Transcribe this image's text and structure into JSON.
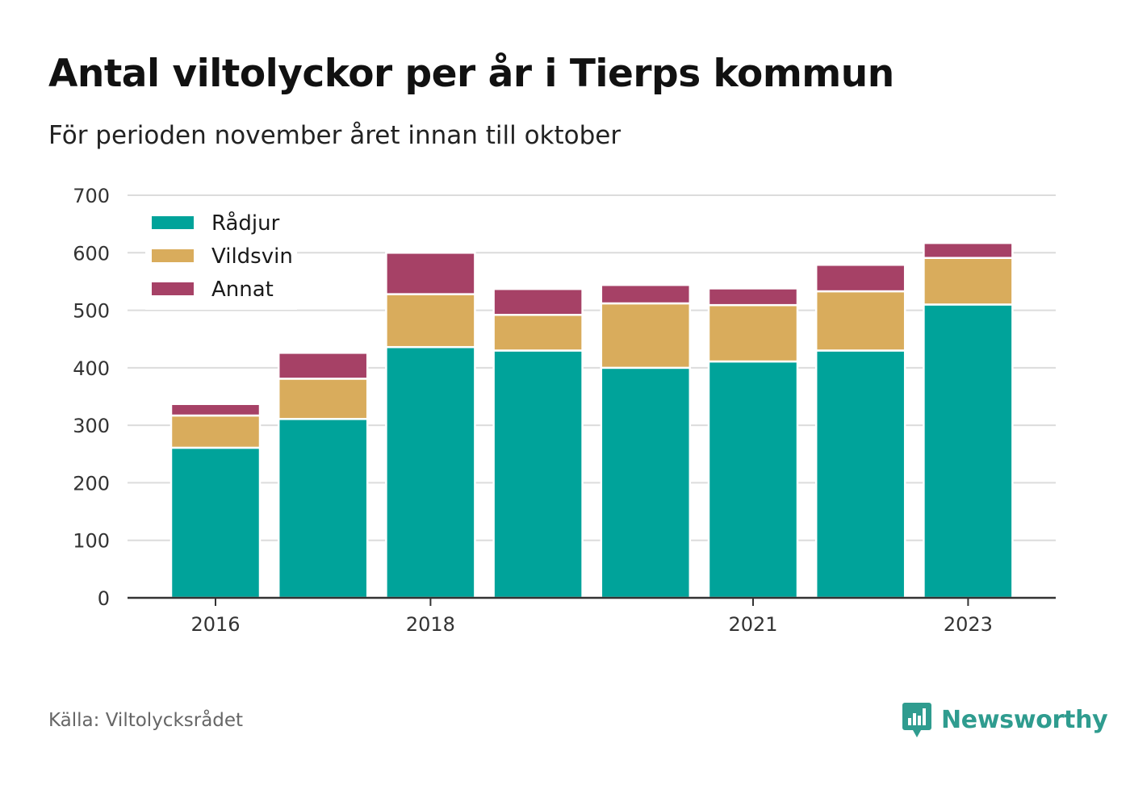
{
  "header": {
    "title": "Antal viltolyckor per år i Tierps kommun",
    "subtitle": "För perioden november året innan till oktober"
  },
  "footer": {
    "source": "Källa: Viltolycksrådet",
    "brand": "Newsworthy",
    "brand_icon": "bar-chart-speech-bubble-icon",
    "brand_color": "#2f9c8f"
  },
  "chart_data": {
    "type": "bar",
    "stacked": true,
    "categories": [
      "2016",
      "2017",
      "2018",
      "2019",
      "2020",
      "2021",
      "2022",
      "2023"
    ],
    "x_tick_labels": [
      "2016",
      "",
      "2018",
      "",
      "",
      "2021",
      "",
      "2023"
    ],
    "series": [
      {
        "name": "Rådjur",
        "color": "#00a39a",
        "values": [
          261,
          311,
          436,
          430,
          400,
          411,
          430,
          510
        ]
      },
      {
        "name": "Vildsvin",
        "color": "#d9ac5c",
        "values": [
          56,
          70,
          92,
          62,
          112,
          98,
          103,
          81
        ]
      },
      {
        "name": "Annat",
        "color": "#a64166",
        "values": [
          20,
          45,
          72,
          45,
          32,
          29,
          46,
          26
        ]
      }
    ],
    "ylim": [
      0,
      700
    ],
    "yticks": [
      0,
      100,
      200,
      300,
      400,
      500,
      600,
      700
    ],
    "grid": true,
    "legend_position": "top-left",
    "xlabel": "",
    "ylabel": ""
  }
}
